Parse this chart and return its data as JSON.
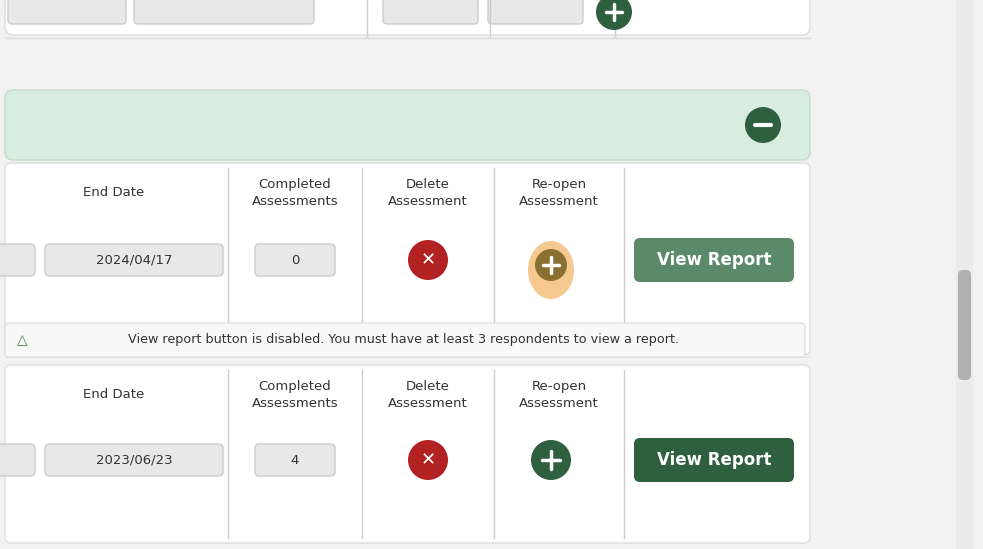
{
  "bg_color": "#ffffff",
  "page_bg": "#f2f2f2",
  "green_header_bg": "#d8ece0",
  "dark_green": "#2e5f3e",
  "view_report_green_row1": "#5a8a6a",
  "view_report_green_row2": "#2e5f3e",
  "red_icon": "#b22222",
  "border_color": "#cccccc",
  "text_color": "#333333",
  "light_gray": "#e8e8e8",
  "warning_bg": "#f8f8f8",
  "row1_date": "2024/04/17",
  "row1_count": "0",
  "row2_date": "2023/06/23",
  "row2_count": "4",
  "col_end_date": "End Date",
  "col_completed": "Completed\nAssessments",
  "col_delete": "Delete\nAssessment",
  "col_reopen": "Re-open\nAssessment",
  "btn_view_report": "View Report",
  "warning_text": "  View report button is disabled. You must have at least 3 respondents to view a report.",
  "minus_btn_color": "#2e5f3e",
  "orange_circle_color": "#f5c890",
  "orange_inner_color": "#8a7030",
  "scrollbar_color": "#b0b0b0",
  "scrollbar_track": "#ebebeb",
  "top_row_gray": "#e0e0e0",
  "sep_color": "#cccccc",
  "card_border": "#dddddd",
  "header_border": "#c5ddc5"
}
